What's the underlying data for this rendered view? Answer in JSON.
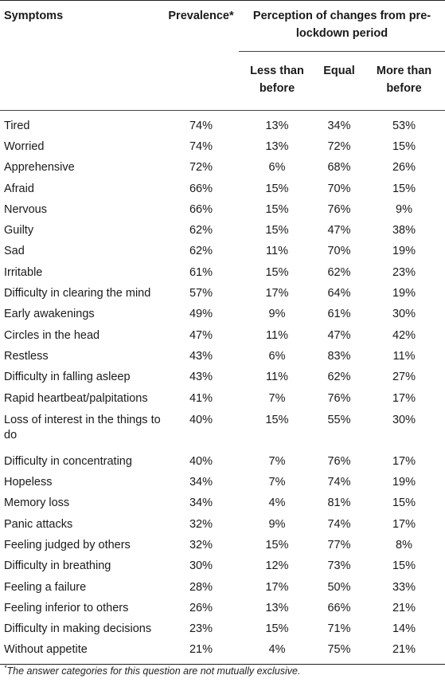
{
  "headers": {
    "symptoms": "Symptoms",
    "prevalence": "Prevalence*",
    "perception": "Perception of changes from pre-lockdown period",
    "less": "Less than before",
    "equal": "Equal",
    "more": "More than before"
  },
  "rows": [
    [
      "Tired",
      "74%",
      "13%",
      "34%",
      "53%"
    ],
    [
      "Worried",
      "74%",
      "13%",
      "72%",
      "15%"
    ],
    [
      "Apprehensive",
      "72%",
      "6%",
      "68%",
      "26%"
    ],
    [
      "Afraid",
      "66%",
      "15%",
      "70%",
      "15%"
    ],
    [
      "Nervous",
      "66%",
      "15%",
      "76%",
      "9%"
    ],
    [
      "Guilty",
      "62%",
      "15%",
      "47%",
      "38%"
    ],
    [
      "Sad",
      "62%",
      "11%",
      "70%",
      "19%"
    ],
    [
      "Irritable",
      "61%",
      "15%",
      "62%",
      "23%"
    ],
    [
      "Difficulty in clearing the mind",
      "57%",
      "17%",
      "64%",
      "19%"
    ],
    [
      "Early awakenings",
      "49%",
      "9%",
      "61%",
      "30%"
    ],
    [
      "Circles in the head",
      "47%",
      "11%",
      "47%",
      "42%"
    ],
    [
      "Restless",
      "43%",
      "6%",
      "83%",
      "11%"
    ],
    [
      "Difficulty in falling asleep",
      "43%",
      "11%",
      "62%",
      "27%"
    ],
    [
      "Rapid heartbeat/palpitations",
      "41%",
      "7%",
      "76%",
      "17%"
    ],
    [
      "Loss of interest in the things to do",
      "40%",
      "15%",
      "55%",
      "30%"
    ],
    [
      "Difficulty in concentrating",
      "40%",
      "7%",
      "76%",
      "17%"
    ],
    [
      "Hopeless",
      "34%",
      "7%",
      "74%",
      "19%"
    ],
    [
      "Memory loss",
      "34%",
      "4%",
      "81%",
      "15%"
    ],
    [
      "Panic attacks",
      "32%",
      "9%",
      "74%",
      "17%"
    ],
    [
      "Feeling judged by others",
      "32%",
      "15%",
      "77%",
      "8%"
    ],
    [
      "Difficulty in breathing",
      "30%",
      "12%",
      "73%",
      "15%"
    ],
    [
      "Feeling a failure",
      "28%",
      "17%",
      "50%",
      "33%"
    ],
    [
      "Feeling inferior to others",
      "26%",
      "13%",
      "66%",
      "21%"
    ],
    [
      "Difficulty in making decisions",
      "23%",
      "15%",
      "71%",
      "14%"
    ],
    [
      "Without appetite",
      "21%",
      "4%",
      "75%",
      "21%"
    ]
  ],
  "footnote": {
    "mark": "*",
    "text": "The answer categories for this question are not mutually exclusive."
  }
}
